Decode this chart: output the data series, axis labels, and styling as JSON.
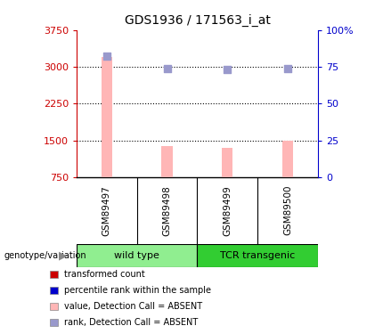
{
  "title": "GDS1936 / 171563_i_at",
  "samples": [
    "GSM89497",
    "GSM89498",
    "GSM89499",
    "GSM89500"
  ],
  "pink_values": [
    3200,
    1380,
    1340,
    1490
  ],
  "blue_percentiles": [
    82,
    74,
    73,
    74
  ],
  "yleft_min": 750,
  "yleft_max": 3750,
  "yleft_ticks": [
    750,
    1500,
    2250,
    3000,
    3750
  ],
  "yright_min": 0,
  "yright_max": 100,
  "yright_ticks": [
    0,
    25,
    50,
    75,
    100
  ],
  "yright_labels": [
    "0",
    "25",
    "50",
    "75",
    "100%"
  ],
  "bar_color": "#ffb6b6",
  "dot_color": "#9999cc",
  "bg_sample_box": "#d3d3d3",
  "bg_group_wt": "#90ee90",
  "bg_group_tcr": "#32cd32",
  "left_axis_color": "#cc0000",
  "right_axis_color": "#0000cc",
  "legend_items": [
    {
      "label": "transformed count",
      "color": "#cc0000"
    },
    {
      "label": "percentile rank within the sample",
      "color": "#0000cc"
    },
    {
      "label": "value, Detection Call = ABSENT",
      "color": "#ffb6b6"
    },
    {
      "label": "rank, Detection Call = ABSENT",
      "color": "#9999cc"
    }
  ]
}
